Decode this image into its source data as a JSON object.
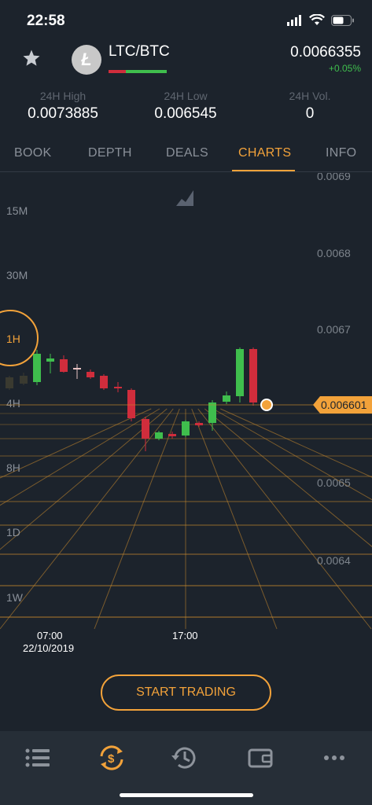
{
  "status": {
    "time": "22:58"
  },
  "header": {
    "pair": "LTC/BTC",
    "coin_symbol": "Ł",
    "price": "0.0066355",
    "change": "+0.05%"
  },
  "stats": [
    {
      "label": "24H High",
      "value": "0.0073885"
    },
    {
      "label": "24H Low",
      "value": "0.006545"
    },
    {
      "label": "24H Vol.",
      "value": "0"
    }
  ],
  "tabs": [
    {
      "label": "BOOK",
      "active": false
    },
    {
      "label": "DEPTH",
      "active": false
    },
    {
      "label": "DEALS",
      "active": false
    },
    {
      "label": "CHARTS",
      "active": true
    },
    {
      "label": "INFO",
      "active": false
    }
  ],
  "chart": {
    "intervals": [
      "15M",
      "30M",
      "1H",
      "4H",
      "8H",
      "1D",
      "1W"
    ],
    "selected_interval": "1H",
    "price_labels": [
      "0.0069",
      "0.0068",
      "0.0067",
      "0.0065",
      "0.0064"
    ],
    "current_price_tag": "0.006601",
    "time_labels": [
      {
        "time": "07:00",
        "date": "22/10/2019"
      },
      {
        "time": "17:00",
        "date": ""
      }
    ],
    "colors": {
      "up": "#3fbe4d",
      "down": "#d02d3c",
      "accent": "#f2a23a",
      "grid": "#c98a2e"
    }
  },
  "actions": {
    "start_trading": "START TRADING"
  },
  "bottom_nav": [
    {
      "icon": "list-icon",
      "active": false
    },
    {
      "icon": "exchange-icon",
      "active": true
    },
    {
      "icon": "history-icon",
      "active": false
    },
    {
      "icon": "wallet-icon",
      "active": false
    },
    {
      "icon": "more-icon",
      "active": false
    }
  ]
}
